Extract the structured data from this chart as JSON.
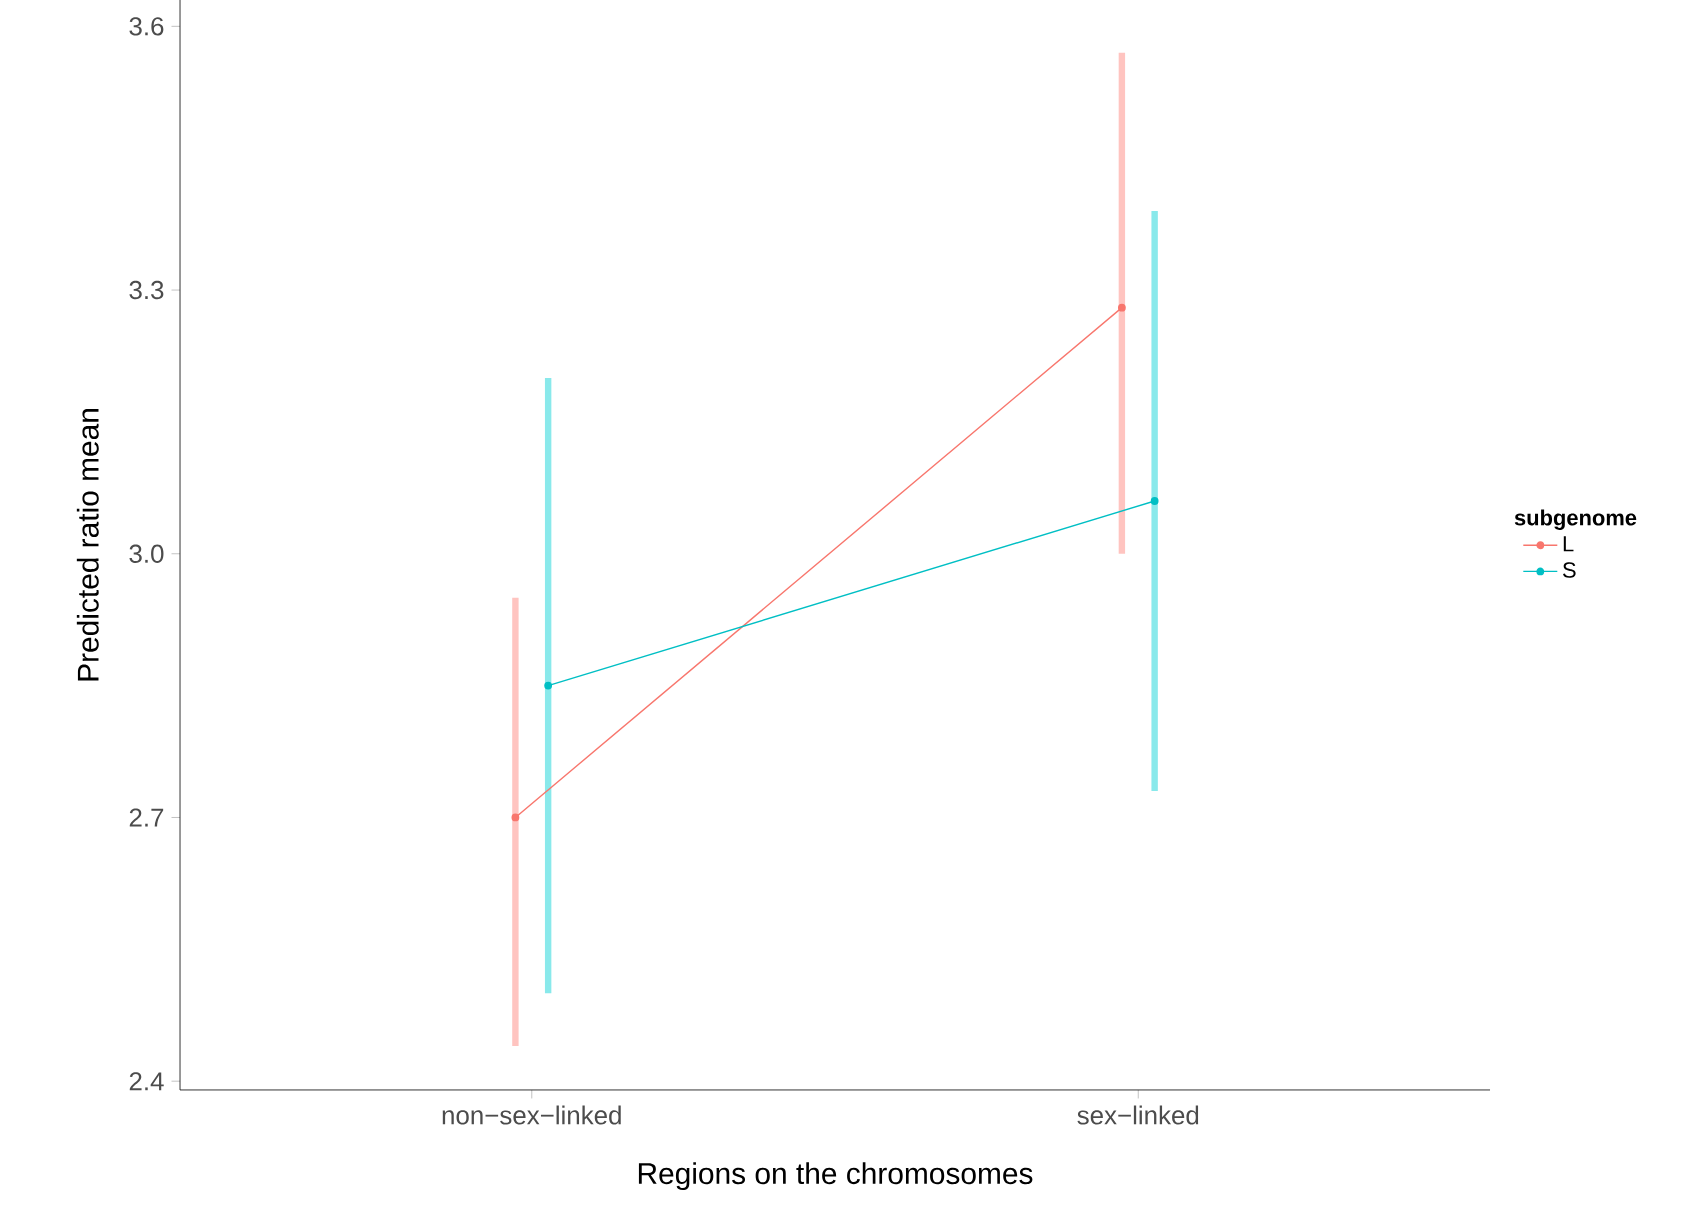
{
  "chart_data": {
    "type": "line",
    "xlabel": "Regions on the chromosomes",
    "ylabel": "Predicted ratio mean",
    "legend_title": "subgenome",
    "categories": [
      "non−sex−linked",
      "sex−linked"
    ],
    "series": [
      {
        "name": "L",
        "color": "#f8766d",
        "values": [
          2.7,
          3.28
        ],
        "errors": [
          [
            2.44,
            2.95
          ],
          [
            3.0,
            3.57
          ]
        ]
      },
      {
        "name": "S",
        "color": "#00bfc4",
        "values": [
          2.85,
          3.06
        ],
        "errors": [
          [
            2.5,
            3.2
          ],
          [
            2.73,
            3.39
          ]
        ]
      }
    ],
    "ylim": [
      2.39,
      3.63
    ],
    "yticks": [
      {
        "value": 2.4,
        "label": "2.4"
      },
      {
        "value": 2.7,
        "label": "2.7"
      },
      {
        "value": 3.0,
        "label": "3.0"
      },
      {
        "value": 3.3,
        "label": "3.3"
      },
      {
        "value": 3.6,
        "label": "3.6"
      }
    ],
    "grid": false,
    "legend": "right",
    "marker": "circle",
    "line_style": "solid"
  }
}
